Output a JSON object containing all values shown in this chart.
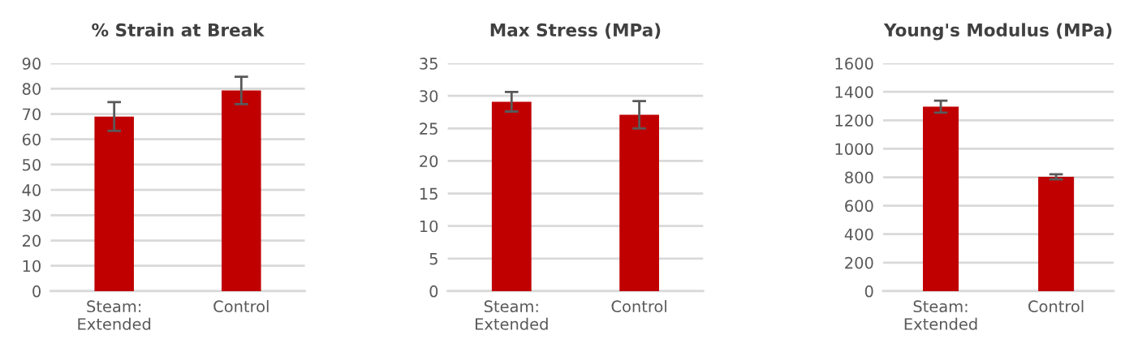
{
  "chart_data": [
    {
      "type": "bar",
      "title": "% Strain at Break",
      "categories": [
        "Steam:\nExtended",
        "Control"
      ],
      "values": [
        69,
        79.3
      ],
      "errors": [
        5.7,
        5.4
      ],
      "color": "#c00000",
      "ylim": [
        0,
        90
      ],
      "yticks": [
        0,
        10,
        20,
        30,
        40,
        50,
        60,
        70,
        80,
        90
      ],
      "grid": "y"
    },
    {
      "type": "bar",
      "title": "Max Stress (MPa)",
      "categories": [
        "Steam:\nExtended",
        "Control"
      ],
      "values": [
        29.1,
        27.1
      ],
      "errors": [
        1.5,
        2.1
      ],
      "color": "#c00000",
      "ylim": [
        0,
        35
      ],
      "yticks": [
        0,
        5,
        10,
        15,
        20,
        25,
        30,
        35
      ],
      "grid": "y"
    },
    {
      "type": "bar",
      "title": "Young's Modulus (MPa)",
      "categories": [
        "Steam:\nExtended",
        "Control"
      ],
      "values": [
        1296,
        803
      ],
      "errors": [
        42,
        18
      ],
      "color": "#c00000",
      "ylim": [
        0,
        1600
      ],
      "yticks": [
        0,
        200,
        400,
        600,
        800,
        1000,
        1200,
        1400,
        1600
      ],
      "grid": "y"
    }
  ]
}
